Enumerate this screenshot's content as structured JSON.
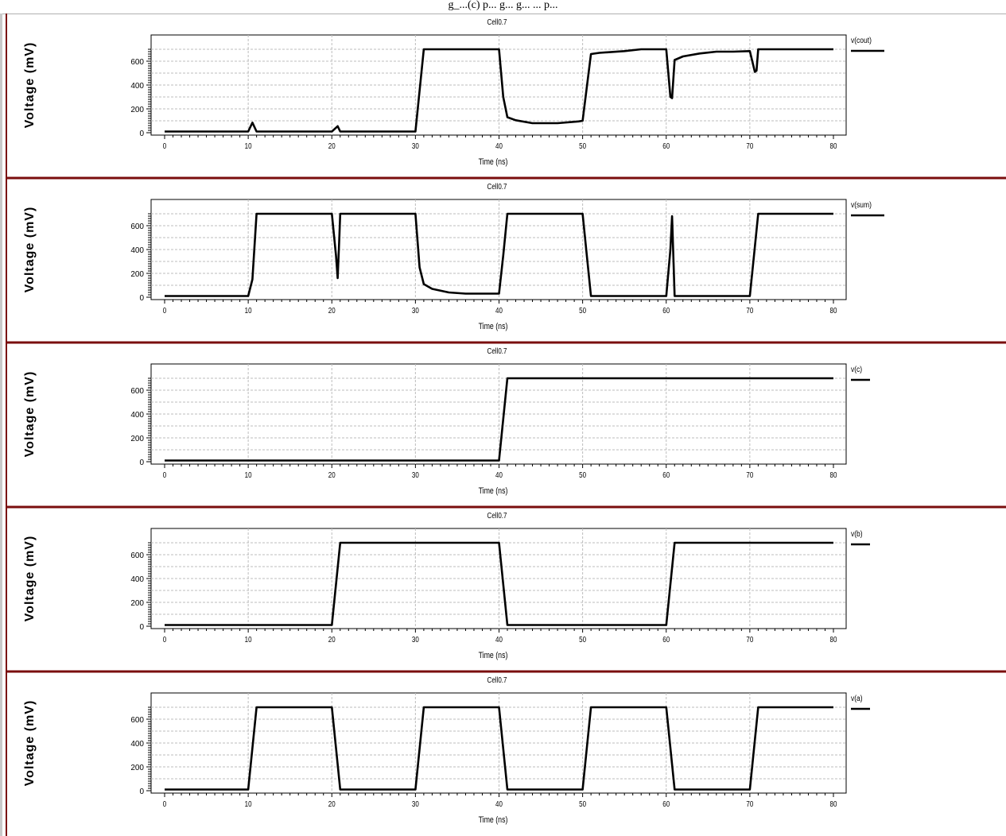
{
  "header": {
    "text": "g_...(c) p... g... g... ... p..."
  },
  "chart_data": [
    {
      "type": "line",
      "title": "Cell0.7",
      "xlabel": "Time (ns)",
      "ylabel": "Voltage (mV)",
      "xlim": [
        0,
        80
      ],
      "ylim": [
        0,
        700
      ],
      "xticks": [
        0,
        10,
        20,
        30,
        40,
        50,
        60,
        70,
        80
      ],
      "yticks": [
        0,
        200,
        400,
        600
      ],
      "grid": true,
      "legend_position": "right",
      "series": [
        {
          "name": "v(cout)",
          "x": [
            0,
            10,
            10.5,
            11,
            20,
            20.7,
            21,
            30,
            31,
            40,
            40.5,
            41,
            42,
            44,
            47,
            49.5,
            50,
            51,
            52,
            55,
            57,
            60,
            60.5,
            60.7,
            61,
            62,
            64,
            66,
            68,
            70,
            70.6,
            70.8,
            71,
            80
          ],
          "y": [
            10,
            10,
            85,
            10,
            10,
            55,
            10,
            10,
            700,
            700,
            300,
            130,
            105,
            80,
            80,
            95,
            100,
            660,
            670,
            685,
            700,
            700,
            300,
            290,
            610,
            640,
            665,
            680,
            680,
            685,
            510,
            520,
            700,
            700
          ]
        }
      ]
    },
    {
      "type": "line",
      "title": "Cell0.7",
      "xlabel": "Time (ns)",
      "ylabel": "Voltage (mV)",
      "xlim": [
        0,
        80
      ],
      "ylim": [
        0,
        700
      ],
      "xticks": [
        0,
        10,
        20,
        30,
        40,
        50,
        60,
        70,
        80
      ],
      "yticks": [
        0,
        200,
        400,
        600
      ],
      "grid": true,
      "legend_position": "right",
      "series": [
        {
          "name": "v(sum)",
          "x": [
            0,
            10,
            10.5,
            11,
            20,
            20.5,
            20.7,
            20.9,
            21,
            30,
            30.5,
            31,
            32,
            34,
            36,
            38,
            40,
            40.5,
            41,
            50,
            50.5,
            51,
            60,
            60.5,
            60.7,
            61,
            70,
            70.5,
            71,
            80
          ],
          "y": [
            10,
            10,
            150,
            700,
            700,
            350,
            160,
            500,
            700,
            700,
            250,
            110,
            70,
            40,
            30,
            30,
            30,
            350,
            700,
            700,
            350,
            10,
            10,
            400,
            680,
            10,
            10,
            350,
            700,
            700
          ]
        }
      ]
    },
    {
      "type": "line",
      "title": "Cell0.7",
      "xlabel": "Time (ns)",
      "ylabel": "Voltage (mV)",
      "xlim": [
        0,
        80
      ],
      "ylim": [
        0,
        700
      ],
      "xticks": [
        0,
        10,
        20,
        30,
        40,
        50,
        60,
        70,
        80
      ],
      "yticks": [
        0,
        200,
        400,
        600
      ],
      "grid": true,
      "legend_position": "right",
      "series": [
        {
          "name": "v(c)",
          "x": [
            0,
            40,
            41,
            80
          ],
          "y": [
            10,
            10,
            700,
            700
          ]
        }
      ]
    },
    {
      "type": "line",
      "title": "Cell0.7",
      "xlabel": "Time (ns)",
      "ylabel": "Voltage (mV)",
      "xlim": [
        0,
        80
      ],
      "ylim": [
        0,
        700
      ],
      "xticks": [
        0,
        10,
        20,
        30,
        40,
        50,
        60,
        70,
        80
      ],
      "yticks": [
        0,
        200,
        400,
        600
      ],
      "grid": true,
      "legend_position": "right",
      "series": [
        {
          "name": "v(b)",
          "x": [
            0,
            20,
            21,
            40,
            41,
            60,
            61,
            80
          ],
          "y": [
            10,
            10,
            700,
            700,
            10,
            10,
            700,
            700
          ]
        }
      ]
    },
    {
      "type": "line",
      "title": "Cell0.7",
      "xlabel": "Time (ns)",
      "ylabel": "Voltage (mV)",
      "xlim": [
        0,
        80
      ],
      "ylim": [
        0,
        700
      ],
      "xticks": [
        0,
        10,
        20,
        30,
        40,
        50,
        60,
        70,
        80
      ],
      "yticks": [
        0,
        200,
        400,
        600
      ],
      "grid": true,
      "legend_position": "right",
      "series": [
        {
          "name": "v(a)",
          "x": [
            0,
            10,
            11,
            20,
            21,
            30,
            31,
            40,
            41,
            50,
            51,
            60,
            61,
            70,
            71,
            80
          ],
          "y": [
            10,
            10,
            700,
            700,
            10,
            10,
            700,
            700,
            10,
            10,
            700,
            700,
            10,
            10,
            700,
            700
          ]
        }
      ]
    }
  ]
}
